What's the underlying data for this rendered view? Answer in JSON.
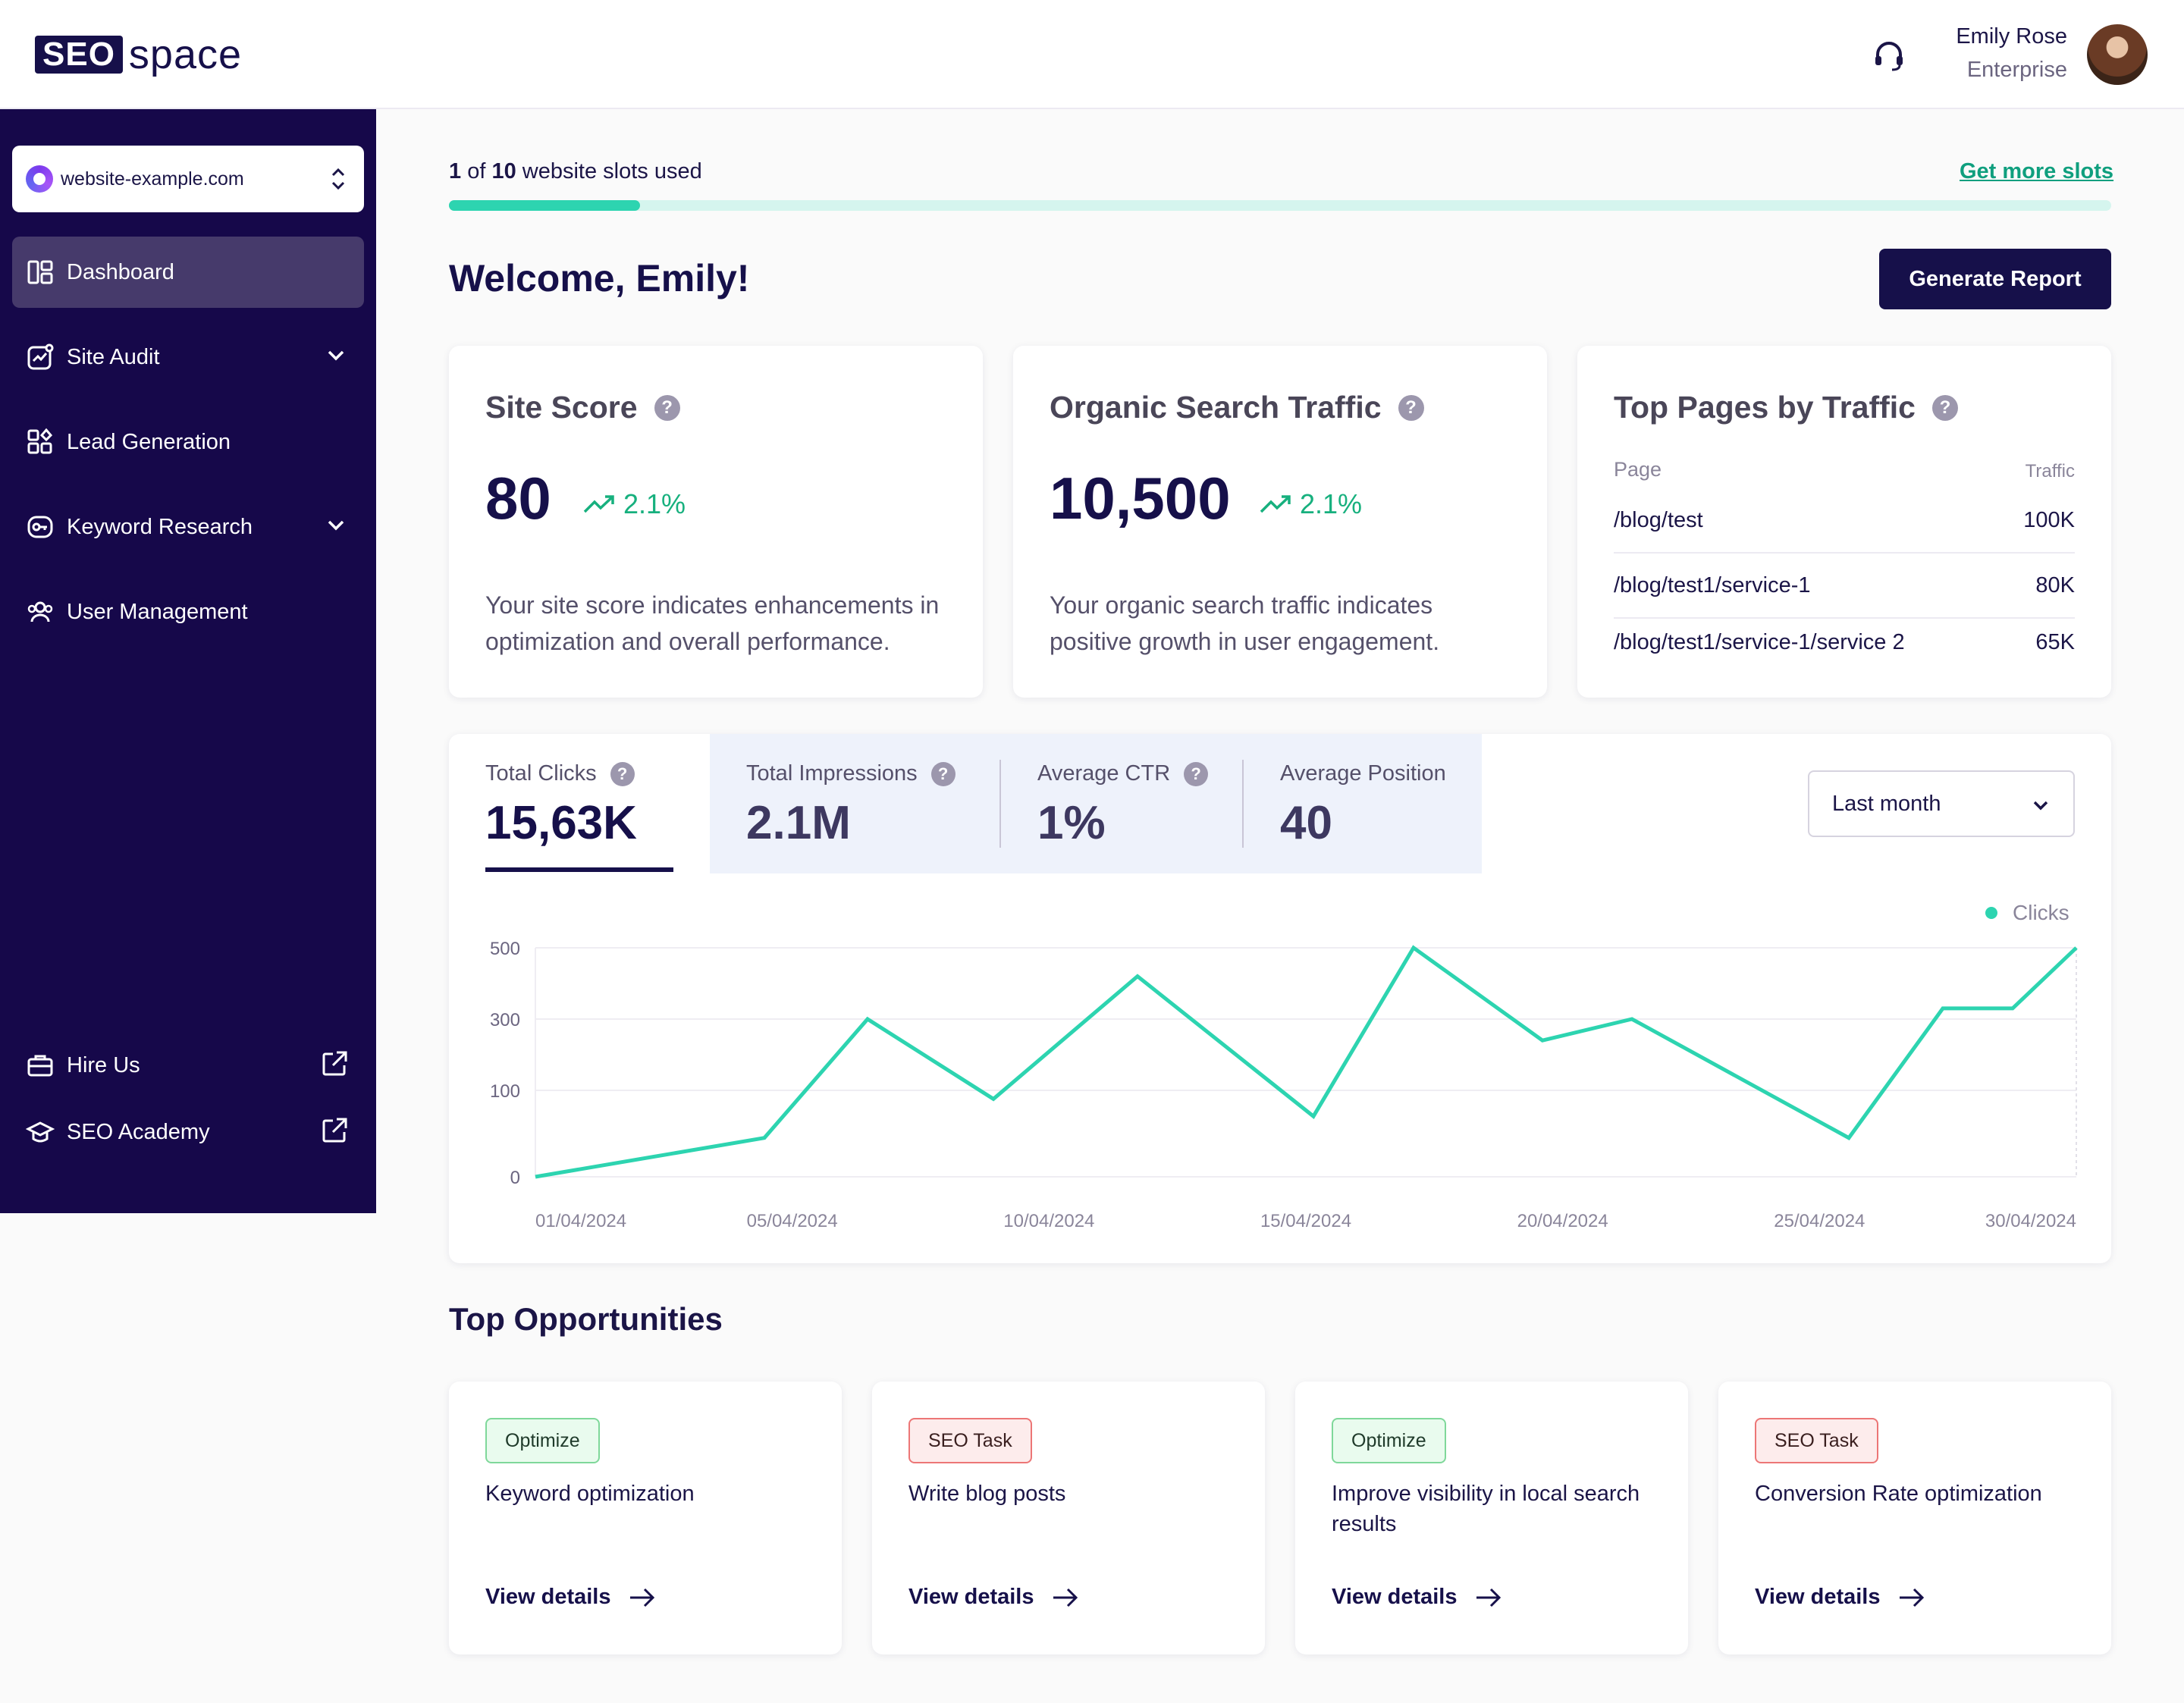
{
  "header": {
    "logo_seo": "SEO",
    "logo_space": "space",
    "user_name": "Emily Rose",
    "user_plan": "Enterprise"
  },
  "sidebar": {
    "site": "website-example.com",
    "items": [
      {
        "label": "Dashboard",
        "icon": "dashboard-icon",
        "active": true
      },
      {
        "label": "Site Audit",
        "icon": "site-audit-icon",
        "expandable": true
      },
      {
        "label": "Lead Generation",
        "icon": "lead-generation-icon"
      },
      {
        "label": "Keyword Research",
        "icon": "keyword-research-icon",
        "expandable": true
      },
      {
        "label": "User Management",
        "icon": "users-icon"
      }
    ],
    "bottom_items": [
      {
        "label": "Hire Us",
        "icon": "briefcase-icon",
        "external": true
      },
      {
        "label": "SEO Academy",
        "icon": "graduation-cap-icon",
        "external": true
      }
    ]
  },
  "slots": {
    "used": "1",
    "of_text": "of",
    "total": "10",
    "suffix": "website slots used",
    "link": "Get more slots",
    "fraction": 0.115
  },
  "welcome": "Welcome, Emily!",
  "generate_button": "Generate Report",
  "cards": {
    "site_score": {
      "title": "Site Score",
      "value": "80",
      "trend": "2.1%",
      "desc": "Your site score indicates enhancements in optimization and overall performance."
    },
    "organic": {
      "title": "Organic Search Traffic",
      "value": "10,500",
      "trend": "2.1%",
      "desc": "Your organic search traffic indicates positive growth in user engagement."
    },
    "top_pages": {
      "title": "Top Pages by Traffic",
      "col_page": "Page",
      "col_traffic": "Traffic",
      "rows": [
        {
          "page": "/blog/test",
          "traffic": "100K"
        },
        {
          "page": "/blog/test1/service-1",
          "traffic": "80K"
        },
        {
          "page": "/blog/test1/service-1/service 2",
          "traffic": "65K"
        }
      ]
    }
  },
  "metrics": [
    {
      "label": "Total Clicks",
      "value": "15,63K",
      "help": true
    },
    {
      "label": "Total Impressions",
      "value": "2.1M",
      "help": true
    },
    {
      "label": "Average CTR",
      "value": "1%",
      "help": true
    },
    {
      "label": "Average Position",
      "value": "40",
      "help": false
    }
  ],
  "period_select": "Last month",
  "chart_data": {
    "type": "line",
    "series": [
      {
        "name": "Clicks",
        "color": "#2dd4b0",
        "x": [
          "01/04/2024",
          "05/04/2024",
          "07/04/2024",
          "09/04/2024",
          "12/04/2024",
          "16/04/2024",
          "18/04/2024",
          "21/04/2024",
          "23/04/2024",
          "27/04/2024",
          "29/04/2024",
          "30/04/2024",
          "30/04/2024"
        ],
        "values": [
          0,
          45,
          300,
          90,
          420,
          70,
          500,
          240,
          300,
          45,
          330,
          330,
          500
        ]
      }
    ],
    "x_ticks": [
      "01/04/2024",
      "05/04/2024",
      "10/04/2024",
      "15/04/2024",
      "20/04/2024",
      "25/04/2024",
      "30/04/2024"
    ],
    "y_ticks": [
      "500",
      "300",
      "100",
      "0"
    ],
    "y_tick_values": [
      500,
      300,
      100,
      0
    ],
    "ylim": [
      0,
      500
    ],
    "legend": "top-right",
    "grid": true
  },
  "opportunities": {
    "title": "Top Opportunities",
    "items": [
      {
        "badge": "Optimize",
        "kind": "opt",
        "text": "Keyword optimization",
        "link": "View details"
      },
      {
        "badge": "SEO Task",
        "kind": "task",
        "text": "Write blog posts",
        "link": "View details"
      },
      {
        "badge": "Optimize",
        "kind": "opt",
        "text": "Improve visibility in local search results",
        "link": "View details"
      },
      {
        "badge": "SEO Task",
        "kind": "task",
        "text": "Conversion Rate optimization",
        "link": "View details"
      }
    ]
  }
}
